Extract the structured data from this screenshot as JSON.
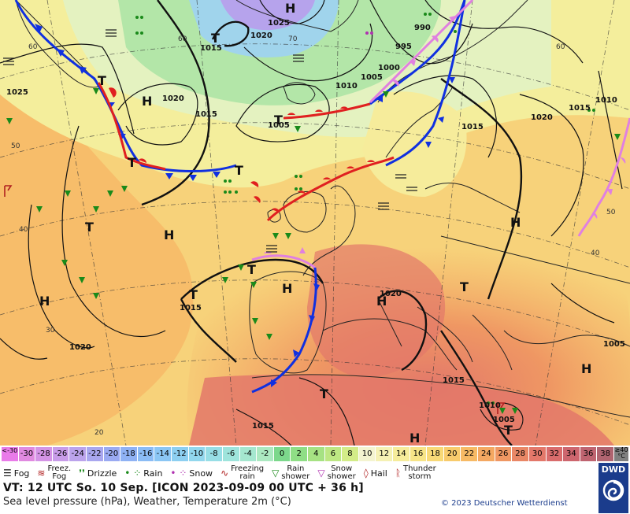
{
  "map": {
    "pressure_labels": [
      {
        "text": "1025"
      },
      {
        "text": "1020"
      },
      {
        "text": "1015"
      },
      {
        "text": "1010"
      },
      {
        "text": "1005"
      },
      {
        "text": "1000"
      },
      {
        "text": "995"
      },
      {
        "text": "990"
      },
      {
        "text": "1025"
      },
      {
        "text": "1020"
      },
      {
        "text": "1015"
      },
      {
        "text": "1020"
      },
      {
        "text": "1015"
      },
      {
        "text": "1010"
      },
      {
        "text": "1005"
      },
      {
        "text": "1015"
      },
      {
        "text": "1020"
      },
      {
        "text": "1015"
      },
      {
        "text": "1010"
      },
      {
        "text": "1005"
      },
      {
        "text": "1015"
      },
      {
        "text": "1020"
      },
      {
        "text": "1015"
      },
      {
        "text": "1005"
      }
    ],
    "systems": [
      "H",
      "T",
      "H",
      "T",
      "T",
      "H",
      "T",
      "T",
      "H",
      "T",
      "H",
      "T",
      "H",
      "T",
      "H",
      "T",
      "T",
      "H",
      "H",
      "T"
    ],
    "lat_labels": [
      "60",
      "50",
      "40",
      "30",
      "20",
      "60",
      "40",
      "70",
      "60",
      "50"
    ]
  },
  "legend": {
    "unit_top": "≥40",
    "unit_bottom": "°C",
    "scale": [
      {
        "label": "<-30",
        "color": "#e97be9"
      },
      {
        "label": "-30",
        "color": "#e08ae0"
      },
      {
        "label": "-28",
        "color": "#d494e6"
      },
      {
        "label": "-26",
        "color": "#c89ce9"
      },
      {
        "label": "-24",
        "color": "#bba3ec"
      },
      {
        "label": "-22",
        "color": "#a9a7ef"
      },
      {
        "label": "-20",
        "color": "#9aaaf2"
      },
      {
        "label": "-18",
        "color": "#8fb2f4"
      },
      {
        "label": "-16",
        "color": "#8bbcf5"
      },
      {
        "label": "-14",
        "color": "#8bc6f4"
      },
      {
        "label": "-12",
        "color": "#8dcff1"
      },
      {
        "label": "-10",
        "color": "#92d7ed"
      },
      {
        "label": "-8",
        "color": "#97dee6"
      },
      {
        "label": "-6",
        "color": "#9ee4dc"
      },
      {
        "label": "-4",
        "color": "#a5e7cf"
      },
      {
        "label": "-2",
        "color": "#ace9c1"
      },
      {
        "label": "0",
        "color": "#7cd88c"
      },
      {
        "label": "2",
        "color": "#8fde86"
      },
      {
        "label": "4",
        "color": "#a6e283"
      },
      {
        "label": "6",
        "color": "#bde783"
      },
      {
        "label": "8",
        "color": "#d3ec88"
      },
      {
        "label": "10",
        "color": "#f4f4d0"
      },
      {
        "label": "12",
        "color": "#f5f1b4"
      },
      {
        "label": "14",
        "color": "#f6ec9b"
      },
      {
        "label": "16",
        "color": "#f7e487"
      },
      {
        "label": "18",
        "color": "#f8d977"
      },
      {
        "label": "20",
        "color": "#f8cb6c"
      },
      {
        "label": "22",
        "color": "#f7ba65"
      },
      {
        "label": "24",
        "color": "#f4a862"
      },
      {
        "label": "26",
        "color": "#ef9763"
      },
      {
        "label": "28",
        "color": "#e98766"
      },
      {
        "label": "30",
        "color": "#e3786a"
      },
      {
        "label": "32",
        "color": "#d96c6c"
      },
      {
        "label": "34",
        "color": "#cd666e"
      },
      {
        "label": "36",
        "color": "#bf6470"
      },
      {
        "label": "38",
        "color": "#b06470"
      }
    ],
    "weather": [
      {
        "name": "fog",
        "label": "Fog"
      },
      {
        "name": "freezing-fog",
        "label_top": "Freez.",
        "label_bottom": "Fog"
      },
      {
        "name": "drizzle",
        "label": "Drizzle"
      },
      {
        "name": "rain",
        "label": "Rain"
      },
      {
        "name": "snow",
        "label": "Snow"
      },
      {
        "name": "freezing-rain",
        "label_top": "Freezing",
        "label_bottom": "rain"
      },
      {
        "name": "rain-shower",
        "label_top": "Rain",
        "label_bottom": "shower"
      },
      {
        "name": "snow-shower",
        "label_top": "Snow",
        "label_bottom": "shower"
      },
      {
        "name": "hail",
        "label": "Hail"
      },
      {
        "name": "thunderstorm",
        "label_top": "Thunder",
        "label_bottom": "storm"
      }
    ],
    "vt_line": "VT: 12 UTC So.  10 Sep. [ICON 2023-09-09  00 UTC + 36 h]",
    "description": "Sea level pressure (hPa), Weather, Temperature 2m (°C)",
    "copyright": "© 2023 Deutscher Wetterdienst",
    "logo_text": "DWD",
    "colors": {
      "cold_front": "#1030e0",
      "warm_front": "#e02020",
      "occlusion": "#e080e0",
      "isobar": "#111111",
      "land": "#222222",
      "dwd_blue": "#1b3c8c"
    }
  }
}
